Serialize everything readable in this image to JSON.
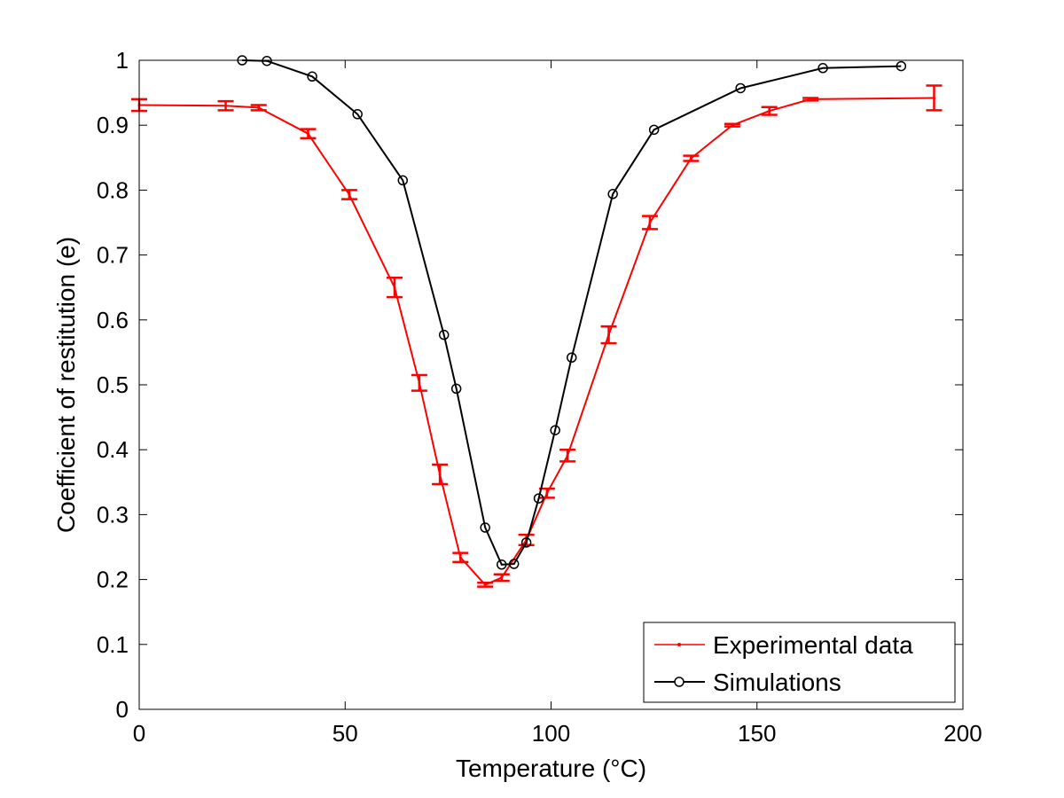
{
  "chart_data": {
    "type": "line",
    "xlabel": "Temperature (°C)",
    "ylabel": "Coefficient of restitution (e)",
    "xlim": [
      0,
      200
    ],
    "ylim": [
      0,
      1
    ],
    "xticks": [
      0,
      50,
      100,
      150,
      200
    ],
    "yticks": [
      0,
      0.1,
      0.2,
      0.3,
      0.4,
      0.5,
      0.6,
      0.7,
      0.8,
      0.9,
      1
    ],
    "grid": false,
    "legend_position": "bottom-right",
    "series": [
      {
        "name": "Experimental data",
        "color": "#ff0000",
        "marker": "dot",
        "error_bars": true,
        "x": [
          0,
          21,
          29,
          41,
          51,
          62,
          68,
          73,
          78,
          84,
          88,
          94,
          99,
          104,
          114,
          124,
          134,
          144,
          153,
          163,
          193
        ],
        "y": [
          0.931,
          0.93,
          0.927,
          0.887,
          0.793,
          0.65,
          0.503,
          0.362,
          0.234,
          0.192,
          0.203,
          0.261,
          0.333,
          0.391,
          0.577,
          0.75,
          0.849,
          0.9,
          0.922,
          0.94,
          0.942
        ],
        "err": [
          0.009,
          0.007,
          0.004,
          0.007,
          0.007,
          0.015,
          0.012,
          0.015,
          0.007,
          0.003,
          0.005,
          0.008,
          0.007,
          0.009,
          0.013,
          0.01,
          0.004,
          0.002,
          0.006,
          0.002,
          0.019
        ]
      },
      {
        "name": "Simulations",
        "color": "#000000",
        "marker": "circle",
        "error_bars": false,
        "x": [
          25,
          31,
          42,
          53,
          64,
          74,
          77,
          84,
          88,
          91,
          94,
          97,
          101,
          105,
          115,
          125,
          146,
          166,
          185
        ],
        "y": [
          1.0,
          0.999,
          0.975,
          0.917,
          0.815,
          0.577,
          0.494,
          0.28,
          0.223,
          0.224,
          0.257,
          0.325,
          0.43,
          0.542,
          0.794,
          0.893,
          0.957,
          0.988,
          0.991
        ]
      }
    ]
  }
}
